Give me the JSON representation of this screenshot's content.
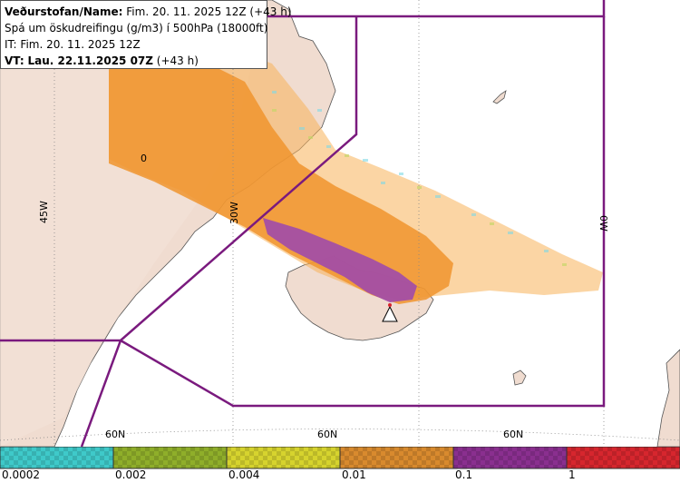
{
  "header": {
    "line1_label": "Veðurstofan/Name:",
    "line1_value": "Fim. 20. 11. 2025 12Z (+43 h)",
    "line2": "Spá um öskudreifingu (g/m3) í 500hPa (18000ft)",
    "line3": "IT: Fim. 20. 11. 2025 12Z",
    "line4_label": "VT:",
    "line4_value": "Lau. 22.11.2025 07Z",
    "line4_suffix": "(+43 h)"
  },
  "grid_labels": {
    "lon_45w": "45W",
    "lon_30w": "30W",
    "lon_0w": "0W",
    "lat_60n_a": "60N",
    "lat_60n_b": "60N",
    "lat_60n_c": "60N",
    "inner_zero": "0"
  },
  "legend": {
    "ticks": [
      "0.0002",
      "0.002",
      "0.004",
      "0.01",
      "0.1",
      "1"
    ],
    "colors": [
      "#3fc9c9",
      "#8fae2a",
      "#d6d32e",
      "#d88a2e",
      "#8a2f8f",
      "#d6262e"
    ]
  },
  "colors": {
    "land": "#f0dcd0",
    "sea": "#ffffff",
    "fir_boundary": "#7a1a7e",
    "ash_low": "#f7b35a",
    "ash_mid": "#f0942e",
    "ash_high": "#a04aaa"
  }
}
